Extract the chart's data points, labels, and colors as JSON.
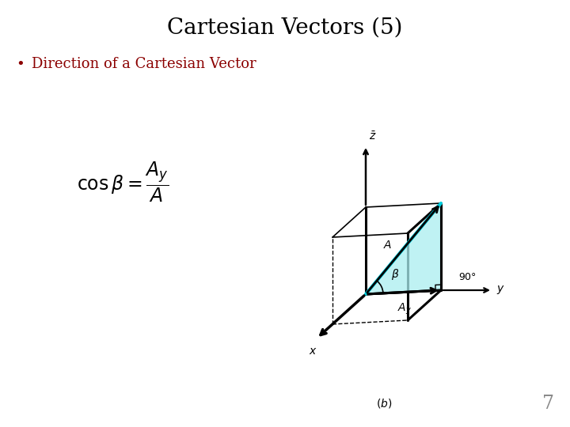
{
  "title": "Cartesian Vectors (5)",
  "bullet": "Direction of a Cartesian Vector",
  "page_num": "7",
  "bg_color": "#ffffff",
  "title_color": "#000000",
  "bullet_color": "#8b0000",
  "cyan_fill": "#aaeef0",
  "cyan_line": "#00d0e0",
  "figsize": [
    7.2,
    5.4
  ],
  "dpi": 100
}
